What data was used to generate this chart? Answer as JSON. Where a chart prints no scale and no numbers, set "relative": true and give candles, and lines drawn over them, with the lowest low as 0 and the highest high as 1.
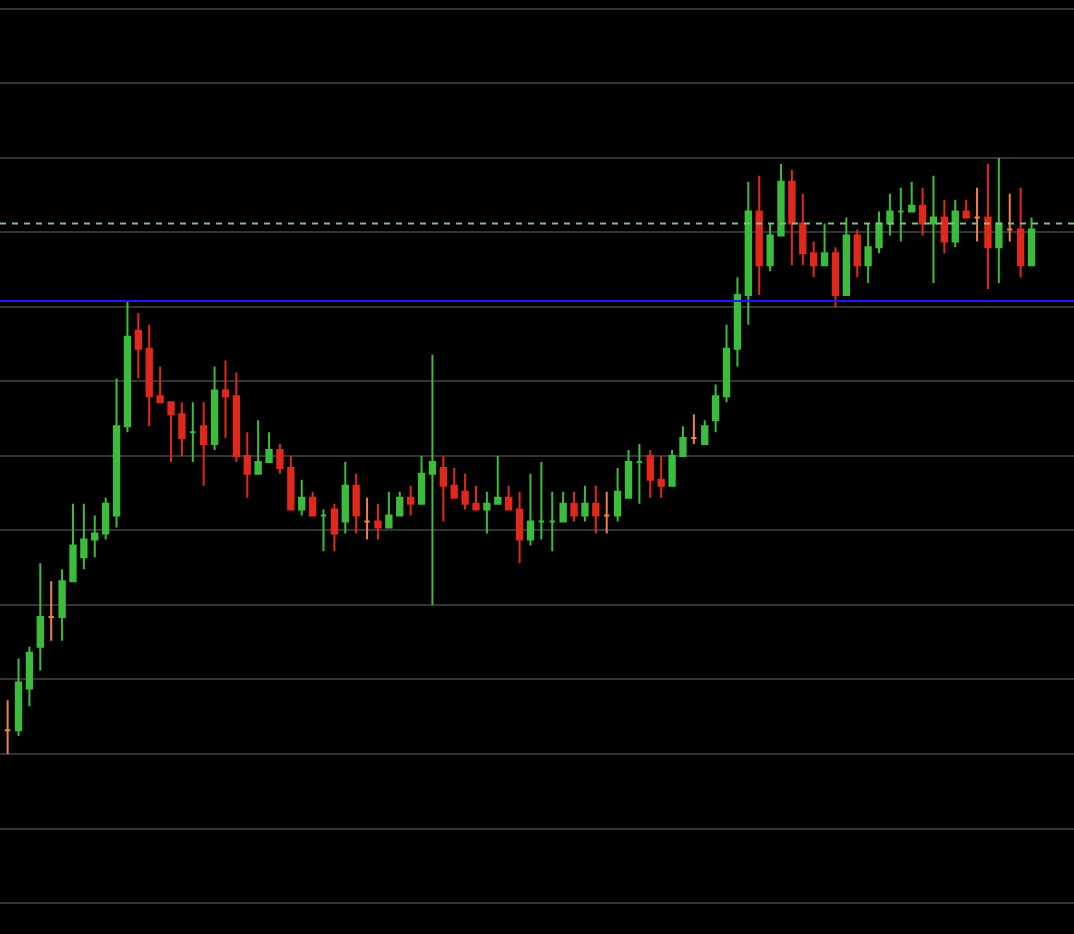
{
  "chart_data": {
    "type": "candlestick",
    "relative": true,
    "grid": true,
    "colors": [
      "#f08050",
      "#3cbc3c",
      "#3cbc3c",
      "#3cbc3c",
      "#f08050",
      "#3cbc3c",
      "#3cbc3c",
      "#3cbc3c",
      "#3cbc3c",
      "#3cbc3c",
      "#3cbc3c",
      "#3cbc3c",
      "#e0281c",
      "#e0281c",
      "#e0281c",
      "#e0281c",
      "#e0281c",
      "#3cbc3c",
      "#e0281c",
      "#3cbc3c",
      "#e0281c",
      "#e0281c",
      "#e0281c",
      "#3cbc3c",
      "#3cbc3c",
      "#e0281c",
      "#e0281c",
      "#3cbc3c",
      "#e0281c",
      "#3cbc3c",
      "#e0281c",
      "#3cbc3c",
      "#e0281c",
      "#f08050",
      "#e0281c",
      "#3cbc3c",
      "#3cbc3c",
      "#e0281c",
      "#3cbc3c",
      "#3cbc3c",
      "#e0281c",
      "#e0281c",
      "#e0281c",
      "#e0281c",
      "#3cbc3c",
      "#3cbc3c",
      "#e0281c",
      "#e0281c",
      "#3cbc3c",
      "#3cbc3c",
      "#3cbc3c",
      "#3cbc3c",
      "#e0281c",
      "#3cbc3c",
      "#e0281c",
      "#f08050",
      "#3cbc3c",
      "#3cbc3c",
      "#3cbc3c",
      "#e0281c",
      "#e0281c",
      "#3cbc3c",
      "#3cbc3c",
      "#f08050",
      "#3cbc3c",
      "#3cbc3c",
      "#3cbc3c",
      "#3cbc3c",
      "#3cbc3c",
      "#e0281c",
      "#3cbc3c",
      "#3cbc3c",
      "#e0281c",
      "#e0281c",
      "#e0281c",
      "#3cbc3c",
      "#e0281c",
      "#3cbc3c",
      "#e0281c",
      "#3cbc3c",
      "#3cbc3c",
      "#3cbc3c",
      "#3cbc3c",
      "#3cbc3c",
      "#e0281c",
      "#3cbc3c",
      "#e0281c",
      "#3cbc3c",
      "#e0281c",
      "#f08050",
      "#e0281c",
      "#3cbc3c",
      "#f08050",
      "#e0281c",
      "#3cbc3c"
    ],
    "categories": [
      null,
      null,
      null,
      null,
      null,
      null,
      null,
      null,
      null,
      null,
      null,
      null,
      null,
      null,
      null,
      null,
      null,
      null,
      null,
      null,
      null,
      null,
      null,
      null,
      null,
      null,
      null,
      null,
      null,
      null,
      null,
      null,
      null,
      null,
      null,
      null,
      null,
      null,
      null,
      null,
      null,
      null,
      null,
      null,
      null,
      null,
      null,
      null,
      null,
      null,
      null,
      null,
      null,
      null,
      null,
      null,
      null,
      null,
      null,
      null,
      null,
      null,
      null,
      null,
      null,
      null,
      null,
      null,
      null,
      null,
      null,
      null,
      null,
      null,
      null,
      null,
      null,
      null,
      null,
      null,
      null,
      null,
      null,
      null,
      null,
      null,
      null,
      null,
      null,
      null,
      null,
      null,
      null,
      null,
      null
    ],
    "ohlc": [
      [
        0.04,
        0.09,
        0.0,
        0.04
      ],
      [
        0.04,
        0.16,
        0.03,
        0.12
      ],
      [
        0.11,
        0.18,
        0.08,
        0.17
      ],
      [
        0.18,
        0.32,
        0.14,
        0.23
      ],
      [
        0.23,
        0.29,
        0.19,
        0.23
      ],
      [
        0.23,
        0.31,
        0.19,
        0.29
      ],
      [
        0.29,
        0.42,
        0.29,
        0.35
      ],
      [
        0.33,
        0.42,
        0.31,
        0.36
      ],
      [
        0.36,
        0.4,
        0.33,
        0.37
      ],
      [
        0.37,
        0.43,
        0.36,
        0.42
      ],
      [
        0.4,
        0.63,
        0.38,
        0.55
      ],
      [
        0.55,
        0.76,
        0.54,
        0.7
      ],
      [
        0.71,
        0.74,
        0.63,
        0.68
      ],
      [
        0.68,
        0.72,
        0.55,
        0.6
      ],
      [
        0.6,
        0.65,
        0.59,
        0.59
      ],
      [
        0.59,
        0.59,
        0.49,
        0.57
      ],
      [
        0.57,
        0.59,
        0.5,
        0.53
      ],
      [
        0.54,
        0.59,
        0.49,
        0.54
      ],
      [
        0.55,
        0.59,
        0.45,
        0.52
      ],
      [
        0.52,
        0.65,
        0.51,
        0.61
      ],
      [
        0.61,
        0.66,
        0.53,
        0.6
      ],
      [
        0.6,
        0.64,
        0.49,
        0.5
      ],
      [
        0.5,
        0.54,
        0.43,
        0.47
      ],
      [
        0.47,
        0.56,
        0.47,
        0.49
      ],
      [
        0.49,
        0.54,
        0.49,
        0.51
      ],
      [
        0.51,
        0.52,
        0.47,
        0.48
      ],
      [
        0.48,
        0.5,
        0.41,
        0.41
      ],
      [
        0.41,
        0.46,
        0.4,
        0.43
      ],
      [
        0.43,
        0.44,
        0.4,
        0.4
      ],
      [
        0.4,
        0.41,
        0.34,
        0.4
      ],
      [
        0.41,
        0.42,
        0.34,
        0.37
      ],
      [
        0.39,
        0.49,
        0.37,
        0.45
      ],
      [
        0.45,
        0.47,
        0.37,
        0.4
      ],
      [
        0.39,
        0.43,
        0.36,
        0.39
      ],
      [
        0.39,
        0.42,
        0.36,
        0.38
      ],
      [
        0.38,
        0.44,
        0.38,
        0.4
      ],
      [
        0.4,
        0.44,
        0.4,
        0.43
      ],
      [
        0.43,
        0.45,
        0.4,
        0.42
      ],
      [
        0.42,
        0.5,
        0.42,
        0.47
      ],
      [
        0.47,
        0.67,
        0.25,
        0.49
      ],
      [
        0.48,
        0.5,
        0.39,
        0.45
      ],
      [
        0.45,
        0.48,
        0.43,
        0.43
      ],
      [
        0.44,
        0.47,
        0.41,
        0.42
      ],
      [
        0.42,
        0.45,
        0.41,
        0.41
      ],
      [
        0.41,
        0.44,
        0.37,
        0.42
      ],
      [
        0.42,
        0.5,
        0.42,
        0.43
      ],
      [
        0.43,
        0.45,
        0.41,
        0.41
      ],
      [
        0.41,
        0.44,
        0.32,
        0.36
      ],
      [
        0.36,
        0.47,
        0.35,
        0.39
      ],
      [
        0.39,
        0.49,
        0.36,
        0.39
      ],
      [
        0.39,
        0.44,
        0.34,
        0.39
      ],
      [
        0.39,
        0.44,
        0.39,
        0.42
      ],
      [
        0.42,
        0.44,
        0.39,
        0.4
      ],
      [
        0.4,
        0.45,
        0.39,
        0.42
      ],
      [
        0.42,
        0.45,
        0.37,
        0.4
      ],
      [
        0.4,
        0.44,
        0.37,
        0.4
      ],
      [
        0.4,
        0.48,
        0.39,
        0.44
      ],
      [
        0.43,
        0.51,
        0.43,
        0.49
      ],
      [
        0.49,
        0.52,
        0.42,
        0.49
      ],
      [
        0.5,
        0.51,
        0.43,
        0.46
      ],
      [
        0.46,
        0.5,
        0.43,
        0.45
      ],
      [
        0.45,
        0.51,
        0.45,
        0.5
      ],
      [
        0.5,
        0.55,
        0.5,
        0.53
      ],
      [
        0.53,
        0.57,
        0.52,
        0.53
      ],
      [
        0.52,
        0.56,
        0.52,
        0.55
      ],
      [
        0.56,
        0.62,
        0.54,
        0.6
      ],
      [
        0.6,
        0.72,
        0.59,
        0.68
      ],
      [
        0.68,
        0.8,
        0.65,
        0.77
      ],
      [
        0.77,
        0.96,
        0.72,
        0.91
      ],
      [
        0.91,
        0.97,
        0.77,
        0.82
      ],
      [
        0.82,
        0.89,
        0.81,
        0.87
      ],
      [
        0.87,
        0.99,
        0.87,
        0.96
      ],
      [
        0.96,
        0.98,
        0.82,
        0.89
      ],
      [
        0.89,
        0.94,
        0.82,
        0.84
      ],
      [
        0.84,
        0.86,
        0.8,
        0.82
      ],
      [
        0.82,
        0.89,
        0.82,
        0.84
      ],
      [
        0.84,
        0.85,
        0.75,
        0.77
      ],
      [
        0.77,
        0.9,
        0.77,
        0.87
      ],
      [
        0.87,
        0.88,
        0.8,
        0.82
      ],
      [
        0.82,
        0.89,
        0.79,
        0.85
      ],
      [
        0.85,
        0.91,
        0.84,
        0.89
      ],
      [
        0.89,
        0.94,
        0.87,
        0.91
      ],
      [
        0.91,
        0.95,
        0.86,
        0.91
      ],
      [
        0.91,
        0.96,
        0.91,
        0.92
      ],
      [
        0.92,
        0.95,
        0.87,
        0.89
      ],
      [
        0.89,
        0.97,
        0.79,
        0.9
      ],
      [
        0.9,
        0.93,
        0.84,
        0.86
      ],
      [
        0.86,
        0.93,
        0.85,
        0.91
      ],
      [
        0.91,
        0.93,
        0.9,
        0.9
      ],
      [
        0.9,
        0.95,
        0.86,
        0.9
      ],
      [
        0.9,
        0.99,
        0.78,
        0.85
      ],
      [
        0.85,
        1.0,
        0.79,
        0.89
      ],
      [
        0.88,
        0.94,
        0.86,
        0.88
      ],
      [
        0.88,
        0.95,
        0.8,
        0.82
      ],
      [
        0.82,
        0.9,
        0.82,
        0.88
      ]
    ],
    "ref_lines": [
      {
        "axis": "y",
        "value": 0.89,
        "color": "#7fbf7f",
        "line_style": "dotted"
      },
      {
        "axis": "y",
        "value": 0.76,
        "color": "#1a1aff",
        "line_style": "solid"
      }
    ]
  }
}
